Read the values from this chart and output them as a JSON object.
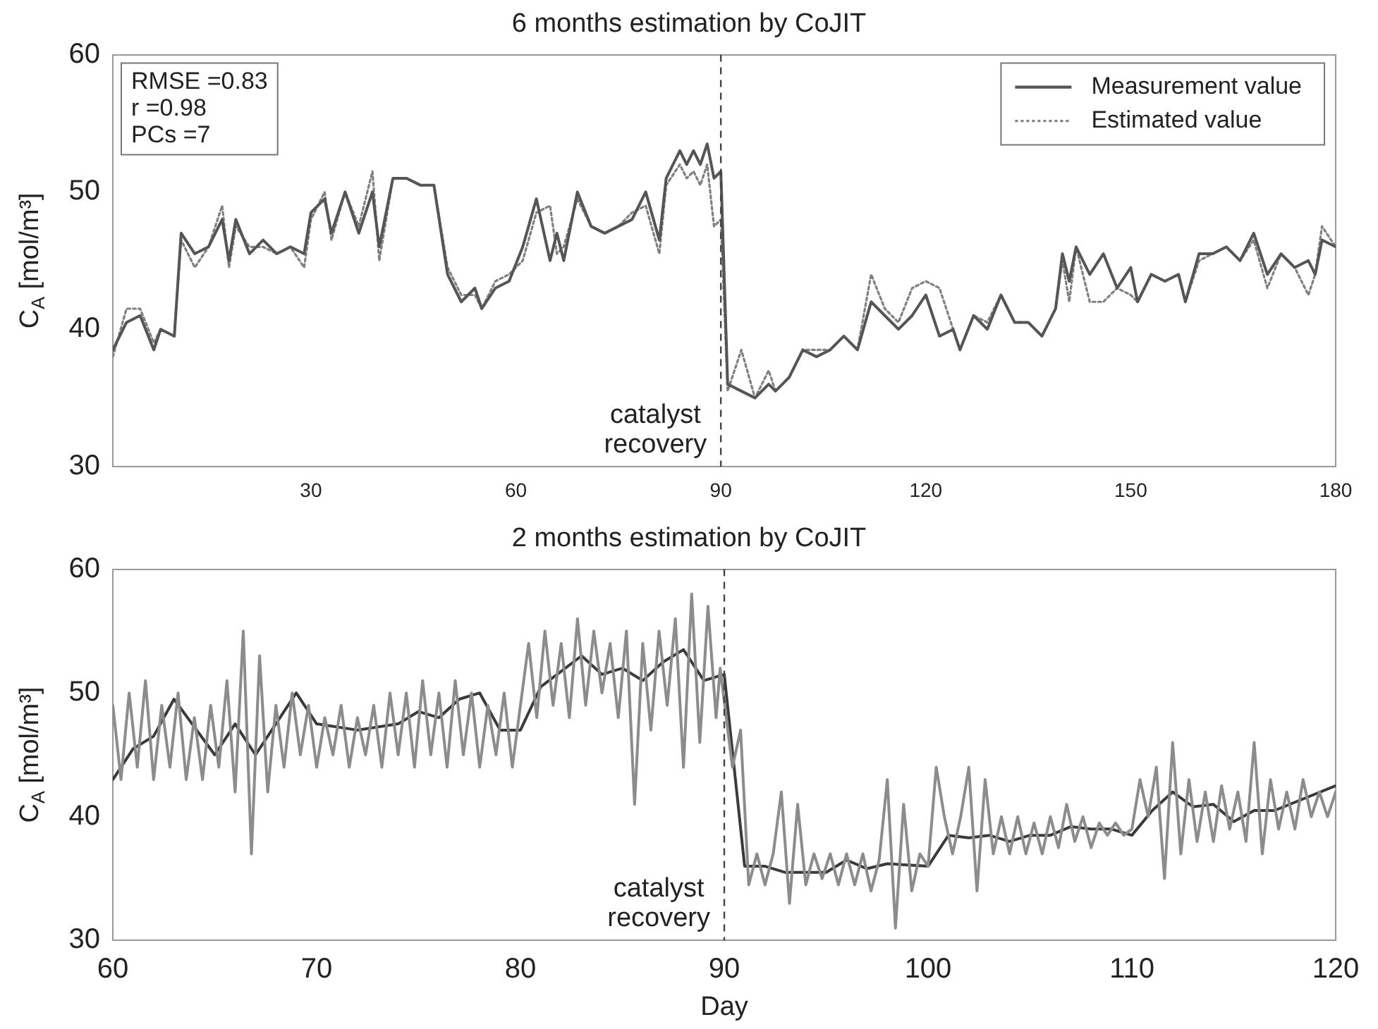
{
  "chart_data": [
    {
      "type": "line",
      "title": "6 months estimation by CoJIT",
      "ylabel": "C$_{A}$ [mol/m³]",
      "xlim": [
        1,
        180
      ],
      "xticks": [
        30,
        60,
        90,
        120,
        150,
        180
      ],
      "ylim": [
        30,
        60
      ],
      "yticks": [
        30,
        40,
        50,
        60
      ],
      "legend": "top right",
      "annotations": [
        "RMSE =0.83",
        "r =0.98",
        "PCs =7"
      ],
      "ref_lines": [
        {
          "axis": "x",
          "value": 90,
          "label": "catalyst recovery",
          "line_style": "dashed",
          "color": "#444444"
        }
      ],
      "x": [
        1,
        3,
        5,
        7,
        8,
        10,
        11,
        13,
        15,
        17,
        18,
        19,
        21,
        23,
        25,
        27,
        29,
        30,
        32,
        33,
        35,
        37,
        39,
        40,
        42,
        44,
        46,
        48,
        50,
        52,
        54,
        55,
        57,
        59,
        61,
        63,
        65,
        66,
        67,
        69,
        71,
        73,
        75,
        77,
        79,
        81,
        82,
        84,
        85,
        86,
        87,
        88,
        89,
        90,
        91,
        93,
        95,
        97,
        98,
        100,
        102,
        104,
        106,
        108,
        110,
        112,
        114,
        116,
        118,
        120,
        122,
        124,
        125,
        127,
        129,
        131,
        133,
        135,
        137,
        139,
        140,
        141,
        142,
        144,
        146,
        148,
        150,
        151,
        153,
        155,
        157,
        158,
        160,
        162,
        164,
        166,
        168,
        170,
        172,
        174,
        176,
        177,
        178,
        180
      ],
      "series": [
        {
          "name": "Measurement value",
          "color": "#555555",
          "line_style": "solid",
          "values": [
            38.5,
            40.5,
            41,
            38.5,
            40,
            39.5,
            47,
            45.5,
            46,
            48,
            45,
            48,
            45.5,
            46.5,
            45.5,
            46,
            45.5,
            48.5,
            49.5,
            47,
            50,
            47,
            50,
            46,
            51,
            51,
            50.5,
            50.5,
            44,
            42,
            43,
            41.5,
            43,
            43.5,
            46,
            49.5,
            45,
            47,
            45,
            50,
            47.5,
            47,
            47.5,
            48,
            50,
            46.5,
            51,
            53,
            52,
            53,
            52,
            53.5,
            51,
            51.5,
            36,
            35.5,
            35,
            36,
            35.5,
            36.5,
            38.5,
            38,
            38.5,
            39.5,
            38.5,
            42,
            41,
            40,
            41,
            42.5,
            39.5,
            40,
            38.5,
            41,
            40,
            42.5,
            40.5,
            40.5,
            39.5,
            41.5,
            45.5,
            43.5,
            46,
            44,
            45.5,
            43,
            44.5,
            42,
            44,
            43.5,
            44,
            42,
            45.5,
            45.5,
            46,
            45,
            47,
            44,
            45.5,
            44.5,
            45,
            44,
            46.5,
            46
          ]
        },
        {
          "name": "Estimated value",
          "color": "#808080",
          "line_style": "dotted",
          "values": [
            38,
            41.5,
            41.5,
            39,
            40,
            39.5,
            46.5,
            44.5,
            46,
            49,
            44.5,
            47.5,
            46,
            46,
            45.5,
            46,
            44.5,
            48,
            50,
            46.5,
            50,
            47.5,
            51.5,
            45,
            51,
            51,
            50.5,
            50.5,
            44.5,
            42.5,
            42.5,
            41.5,
            43.5,
            44,
            45,
            48.5,
            49,
            45.5,
            46,
            49.5,
            47.5,
            47,
            47.5,
            48.5,
            49,
            45.5,
            50.5,
            52,
            51,
            51.5,
            50.5,
            52,
            47.5,
            48,
            35.5,
            38.5,
            35,
            37,
            35.5,
            36.5,
            38.5,
            38.5,
            38.5,
            39.5,
            38.5,
            44,
            41.5,
            40.5,
            43,
            43.5,
            43,
            40,
            38.5,
            41,
            40.5,
            42.5,
            40.5,
            40.5,
            39.5,
            41.5,
            45,
            42,
            46,
            42,
            42,
            43,
            42.5,
            42,
            44,
            43.5,
            44,
            42,
            45,
            45.5,
            46,
            45,
            46.5,
            43,
            45.5,
            44.5,
            42.5,
            44,
            47.5,
            46
          ]
        }
      ]
    },
    {
      "type": "line",
      "title": "2 months estimation by CoJIT",
      "xlabel": "Day",
      "ylabel": "C$_{A}$ [mol/m³]",
      "xlim": [
        60,
        120
      ],
      "xticks": [
        60,
        70,
        80,
        90,
        100,
        110,
        120
      ],
      "ylim": [
        30,
        60
      ],
      "yticks": [
        30,
        40,
        50,
        60
      ],
      "ref_lines": [
        {
          "axis": "x",
          "value": 90,
          "label": "catalyst recovery",
          "line_style": "dashed",
          "color": "#444444"
        }
      ],
      "series": [
        {
          "color": "#8c8c8c",
          "line_style": "solid",
          "x": [
            60,
            60.4,
            60.8,
            61.2,
            61.6,
            62,
            62.4,
            62.8,
            63.2,
            63.6,
            64,
            64.4,
            64.8,
            65.2,
            65.6,
            66,
            66.4,
            66.8,
            67.2,
            67.6,
            68,
            68.4,
            68.8,
            69.2,
            69.6,
            70,
            70.4,
            70.8,
            71.2,
            71.6,
            72,
            72.4,
            72.8,
            73.2,
            73.6,
            74,
            74.4,
            74.8,
            75.2,
            75.6,
            76,
            76.4,
            76.8,
            77.2,
            77.6,
            78,
            78.4,
            78.8,
            79.2,
            79.6,
            80,
            80.4,
            80.8,
            81.2,
            81.6,
            82,
            82.4,
            82.8,
            83.2,
            83.6,
            84,
            84.4,
            84.8,
            85.2,
            85.6,
            86,
            86.4,
            86.8,
            87.2,
            87.6,
            88,
            88.4,
            88.8,
            89.2,
            89.6,
            89.8,
            90.4,
            90.8,
            91.2,
            91.6,
            92,
            92.4,
            92.8,
            93.2,
            93.6,
            94,
            94.4,
            94.8,
            95.2,
            95.6,
            96,
            96.4,
            96.8,
            97.2,
            97.6,
            98,
            98.4,
            98.8,
            99.2,
            99.6,
            100,
            100.4,
            100.8,
            101.2,
            101.6,
            102,
            102.4,
            102.8,
            103.2,
            103.6,
            104,
            104.4,
            104.8,
            105.2,
            105.6,
            106,
            106.4,
            106.8,
            107.2,
            107.6,
            108,
            108.4,
            108.8,
            109.2,
            109.6,
            110,
            110.4,
            110.8,
            111.2,
            111.6,
            112,
            112.4,
            112.8,
            113.2,
            113.6,
            114,
            114.4,
            114.8,
            115.2,
            115.6,
            116,
            116.4,
            116.8,
            117.2,
            117.6,
            118,
            118.4,
            118.8,
            119.2,
            119.6,
            120
          ],
          "values": [
            49,
            43,
            50,
            44,
            51,
            43,
            49,
            44,
            50,
            43,
            48,
            43,
            49,
            44,
            51,
            42,
            55,
            37,
            53,
            42,
            49,
            44,
            50,
            45,
            49,
            44,
            48,
            45,
            49,
            44,
            48,
            45,
            49,
            44,
            50,
            45,
            50,
            44,
            51,
            45,
            50,
            44,
            51,
            45,
            50,
            44,
            49,
            45,
            50,
            44,
            49,
            54,
            48,
            55,
            49,
            54,
            48,
            56,
            49,
            55,
            50,
            54,
            48,
            55,
            41,
            54,
            47,
            55,
            49,
            56,
            44,
            58,
            46,
            57,
            48,
            52,
            44,
            47,
            34.5,
            37,
            34.5,
            37,
            42,
            33,
            41,
            34.5,
            37,
            35,
            37,
            34.5,
            37,
            34.5,
            37,
            34,
            36.5,
            43,
            31,
            41,
            34,
            37,
            36,
            44,
            40,
            37,
            40,
            44,
            34,
            43,
            37,
            40,
            37,
            40,
            37,
            39.5,
            37,
            40,
            37.5,
            41,
            38,
            40,
            37.5,
            39.5,
            38.5,
            39.5,
            38.5,
            39,
            43,
            40,
            44,
            35,
            46,
            37,
            43,
            38,
            42,
            38,
            42.5,
            39,
            42,
            38,
            46,
            37,
            43,
            39,
            42,
            39,
            43,
            40,
            42,
            40,
            42
          ]
        },
        {
          "color": "#3a3a3a",
          "line_style": "solid",
          "x": [
            60,
            61,
            62,
            63,
            65,
            66,
            67,
            69,
            70,
            72,
            74,
            75,
            76,
            77,
            78,
            79,
            80,
            81,
            83,
            84,
            85,
            86,
            87,
            88,
            89,
            90,
            91,
            92,
            93,
            95,
            96,
            97,
            98,
            100,
            101,
            102,
            103,
            104,
            105,
            106,
            107,
            108,
            109,
            110,
            111,
            112,
            113,
            114,
            115,
            116,
            117,
            120
          ],
          "values": [
            43,
            45.5,
            46.5,
            49.5,
            45,
            47.5,
            45,
            50,
            47.5,
            47,
            47.5,
            48.5,
            48,
            49.5,
            50,
            47,
            47,
            50.5,
            53,
            51.5,
            52,
            51,
            52.5,
            53.5,
            51,
            51.5,
            36,
            36,
            35.5,
            35.5,
            36.5,
            35.8,
            36.2,
            36,
            38.5,
            38.3,
            38.5,
            38,
            38.5,
            38.5,
            39.2,
            39,
            39,
            38.5,
            40.5,
            42,
            40.8,
            41,
            39.6,
            40.5,
            40.5,
            42.5
          ]
        }
      ]
    }
  ]
}
